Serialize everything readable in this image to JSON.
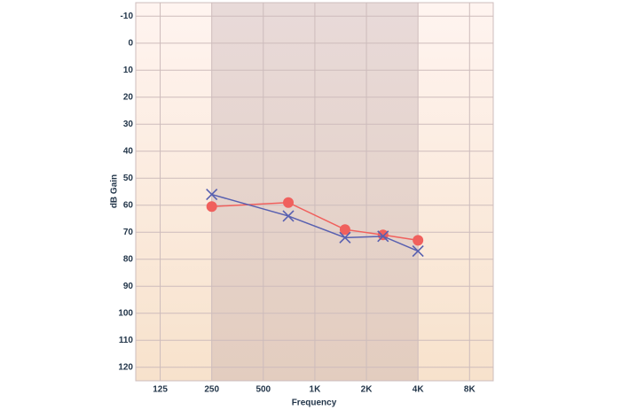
{
  "chart_data": {
    "type": "line",
    "x_label": "Frequency",
    "y_label": "dB Gain",
    "x_log": true,
    "invert_y": true,
    "grid": true,
    "xlim": [
      90,
      11000
    ],
    "ylim": [
      -15,
      125
    ],
    "xticks": [
      {
        "value": 125,
        "label": "125"
      },
      {
        "value": 250,
        "label": "250"
      },
      {
        "value": 500,
        "label": "500"
      },
      {
        "value": 1000,
        "label": "1K"
      },
      {
        "value": 2000,
        "label": "2K"
      },
      {
        "value": 4000,
        "label": "4K"
      },
      {
        "value": 8000,
        "label": "8K"
      }
    ],
    "yticks": [
      -10,
      0,
      10,
      20,
      30,
      40,
      50,
      60,
      70,
      80,
      90,
      100,
      110,
      120
    ],
    "shaded_range": [
      250,
      4000
    ],
    "series": [
      {
        "color": "#f0605d",
        "marker": "circle",
        "x": [
          250,
          700,
          1500,
          2500,
          4000
        ],
        "values": [
          60.5,
          59,
          69,
          71,
          73
        ]
      },
      {
        "color": "#5860b0",
        "marker": "x",
        "x": [
          250,
          700,
          1500,
          2500,
          4000
        ],
        "values": [
          56,
          64,
          72,
          71.5,
          77
        ]
      }
    ]
  }
}
